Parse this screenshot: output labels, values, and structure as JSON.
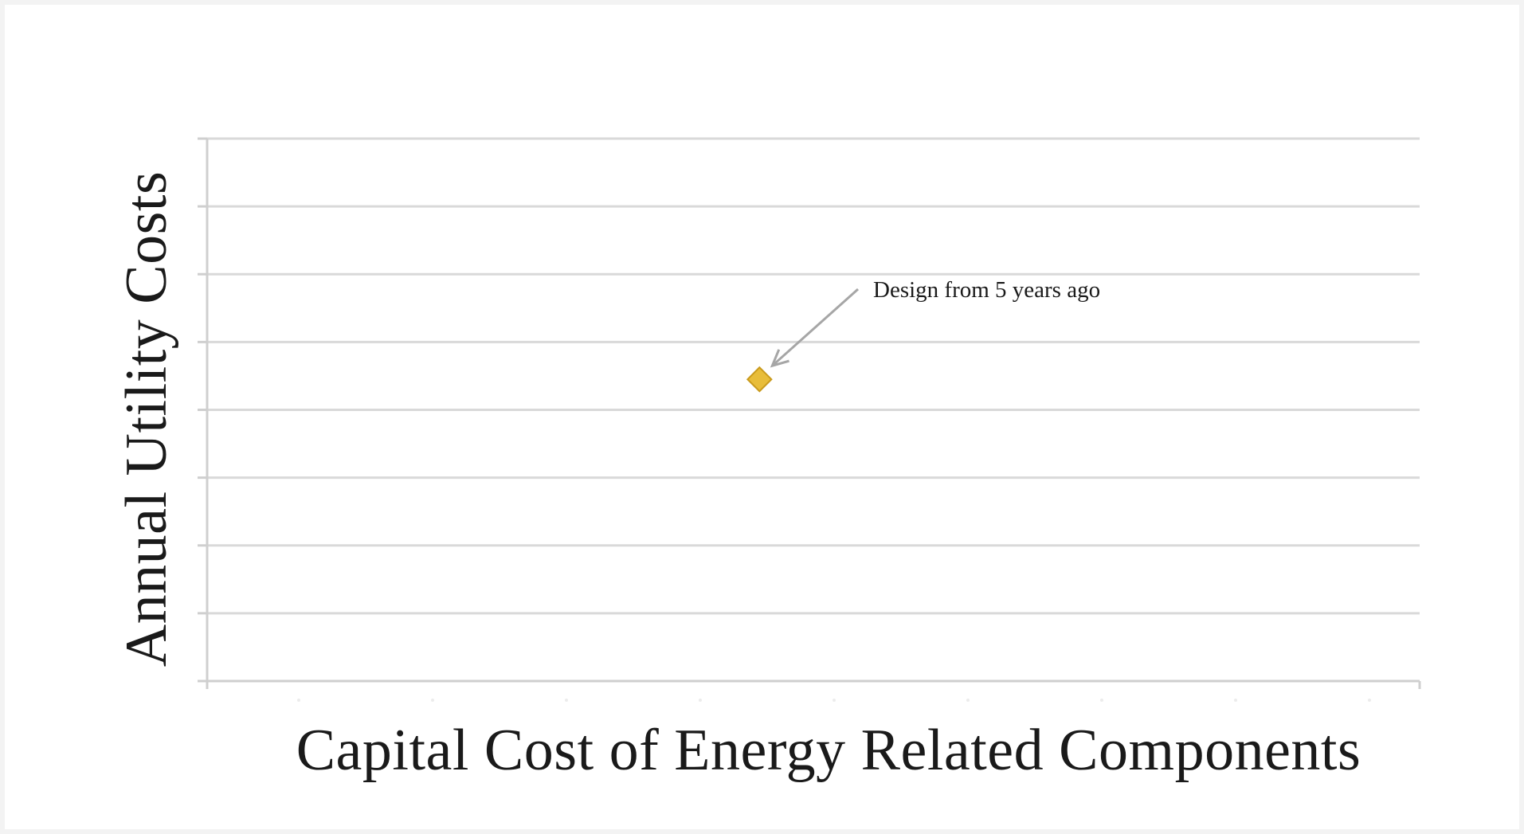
{
  "chart_data": {
    "type": "scatter",
    "title": "",
    "xlabel": "Capital Cost of Energy Related Components",
    "ylabel": "Annual Utility Costs",
    "x_tick_count": 9,
    "y_gridlines": 8,
    "xlim": [
      0,
      9
    ],
    "ylim": [
      0,
      8
    ],
    "grid": true,
    "legend": "none",
    "series": [
      {
        "marker": "diamond",
        "color": "#e8bd3a",
        "points": [
          {
            "x": 4.1,
            "y": 4.45
          }
        ]
      }
    ],
    "annotations": [
      {
        "text": "Design from 5 years ago",
        "arrow": true
      }
    ],
    "colors": {
      "grid": "#d9d9d9",
      "axis": "#cfcfcf",
      "marker_fill": "#e8bd3a",
      "marker_stroke": "#c99a1c",
      "arrow": "#a6a6a6"
    }
  }
}
